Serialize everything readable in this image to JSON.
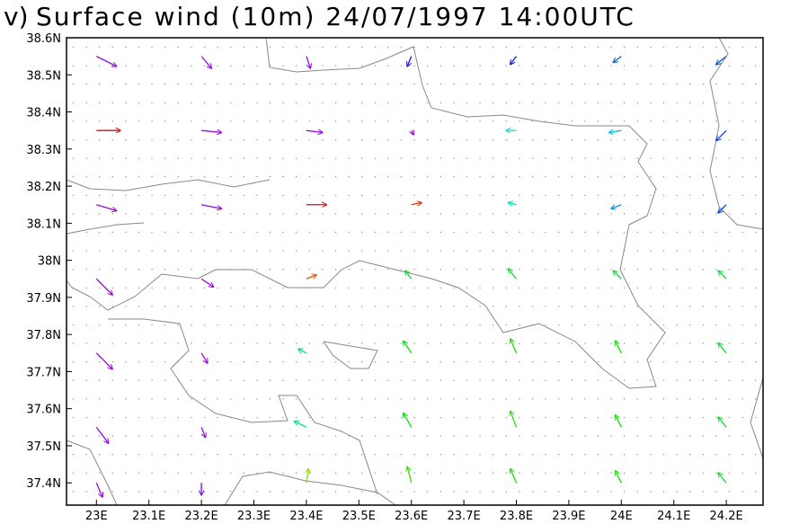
{
  "chart_data": {
    "type": "quiver",
    "panel_label": "v)",
    "title": "Surface wind (10m) 24/07/1997 14:00UTC",
    "xlim": [
      22.943,
      24.27
    ],
    "ylim": [
      37.34,
      38.6
    ],
    "xticks": [
      {
        "value": 23.0,
        "label": "23E"
      },
      {
        "value": 23.1,
        "label": "23.1E"
      },
      {
        "value": 23.2,
        "label": "23.2E"
      },
      {
        "value": 23.3,
        "label": "23.3E"
      },
      {
        "value": 23.4,
        "label": "23.4E"
      },
      {
        "value": 23.5,
        "label": "23.5E"
      },
      {
        "value": 23.6,
        "label": "23.6E"
      },
      {
        "value": 23.7,
        "label": "23.7E"
      },
      {
        "value": 23.8,
        "label": "23.8E"
      },
      {
        "value": 23.9,
        "label": "23.9E"
      },
      {
        "value": 24.0,
        "label": "24E"
      },
      {
        "value": 24.1,
        "label": "24.1E"
      },
      {
        "value": 24.2,
        "label": "24.2E"
      }
    ],
    "yticks": [
      {
        "value": 37.4,
        "label": "37.4N"
      },
      {
        "value": 37.5,
        "label": "37.5N"
      },
      {
        "value": 37.6,
        "label": "37.6N"
      },
      {
        "value": 37.7,
        "label": "37.7N"
      },
      {
        "value": 37.8,
        "label": "37.8N"
      },
      {
        "value": 37.9,
        "label": "37.9N"
      },
      {
        "value": 38.0,
        "label": "38N"
      },
      {
        "value": 38.1,
        "label": "38.1N"
      },
      {
        "value": 38.2,
        "label": "38.2N"
      },
      {
        "value": 38.3,
        "label": "38.3N"
      },
      {
        "value": 38.4,
        "label": "38.4N"
      },
      {
        "value": 38.5,
        "label": "38.5N"
      },
      {
        "value": 38.6,
        "label": "38.6N"
      }
    ],
    "lon": [
      23.0,
      23.2,
      23.4,
      23.6,
      23.8,
      24.0,
      24.2,
      23.0,
      23.2,
      23.4,
      23.6,
      23.8,
      24.0,
      24.2,
      23.0,
      23.2,
      23.4,
      23.6,
      23.8,
      24.0,
      24.2,
      23.0,
      23.2,
      23.4,
      23.6,
      23.8,
      24.0,
      24.2,
      23.0,
      23.2,
      23.4,
      23.6,
      23.8,
      24.0,
      24.2,
      23.0,
      23.2,
      23.4,
      23.6,
      23.8,
      24.0,
      24.2,
      23.0,
      23.2,
      23.4,
      23.6,
      23.8,
      24.0,
      24.2
    ],
    "lat": [
      38.55,
      38.55,
      38.55,
      38.55,
      38.55,
      38.55,
      38.55,
      38.35,
      38.35,
      38.35,
      38.35,
      38.35,
      38.35,
      38.35,
      38.15,
      38.15,
      38.15,
      38.15,
      38.15,
      38.15,
      38.15,
      37.95,
      37.95,
      37.95,
      37.95,
      37.95,
      37.95,
      37.95,
      37.75,
      37.75,
      37.75,
      37.75,
      37.75,
      37.75,
      37.75,
      37.55,
      37.55,
      37.55,
      37.55,
      37.55,
      37.55,
      37.55,
      37.4,
      37.4,
      37.4,
      37.4,
      37.4,
      37.4,
      37.4
    ],
    "u": [
      1,
      0.5,
      0.2,
      -0.2,
      -0.3,
      -0.4,
      -0.5,
      1.2,
      1,
      0.8,
      0.1,
      -0.5,
      -0.6,
      -0.5,
      1,
      1,
      1,
      0.5,
      -0.4,
      -0.5,
      -0.4,
      0.8,
      0.6,
      0.5,
      -0.3,
      -0.4,
      -0.4,
      -0.4,
      0.8,
      0.3,
      -0.4,
      -0.4,
      -0.3,
      -0.3,
      -0.4,
      0.6,
      0.2,
      -0.6,
      -0.4,
      -0.3,
      -0.3,
      -0.4,
      0.3,
      0,
      0.1,
      -0.2,
      -0.3,
      -0.3,
      -0.4
    ],
    "v": [
      -0.5,
      -0.6,
      -0.6,
      -0.5,
      -0.4,
      -0.3,
      -0.4,
      0,
      -0.1,
      -0.1,
      -0.2,
      0,
      -0.1,
      -0.5,
      -0.3,
      -0.2,
      0,
      0.1,
      0.1,
      -0.2,
      -0.4,
      -0.8,
      -0.4,
      0.2,
      0.4,
      0.5,
      0.4,
      0.4,
      -0.8,
      -0.5,
      0.2,
      0.6,
      0.7,
      0.6,
      0.5,
      -0.8,
      -0.5,
      0.3,
      0.7,
      0.8,
      0.6,
      0.5,
      -0.7,
      -0.6,
      0.7,
      0.8,
      0.7,
      0.6,
      0.5
    ]
  }
}
